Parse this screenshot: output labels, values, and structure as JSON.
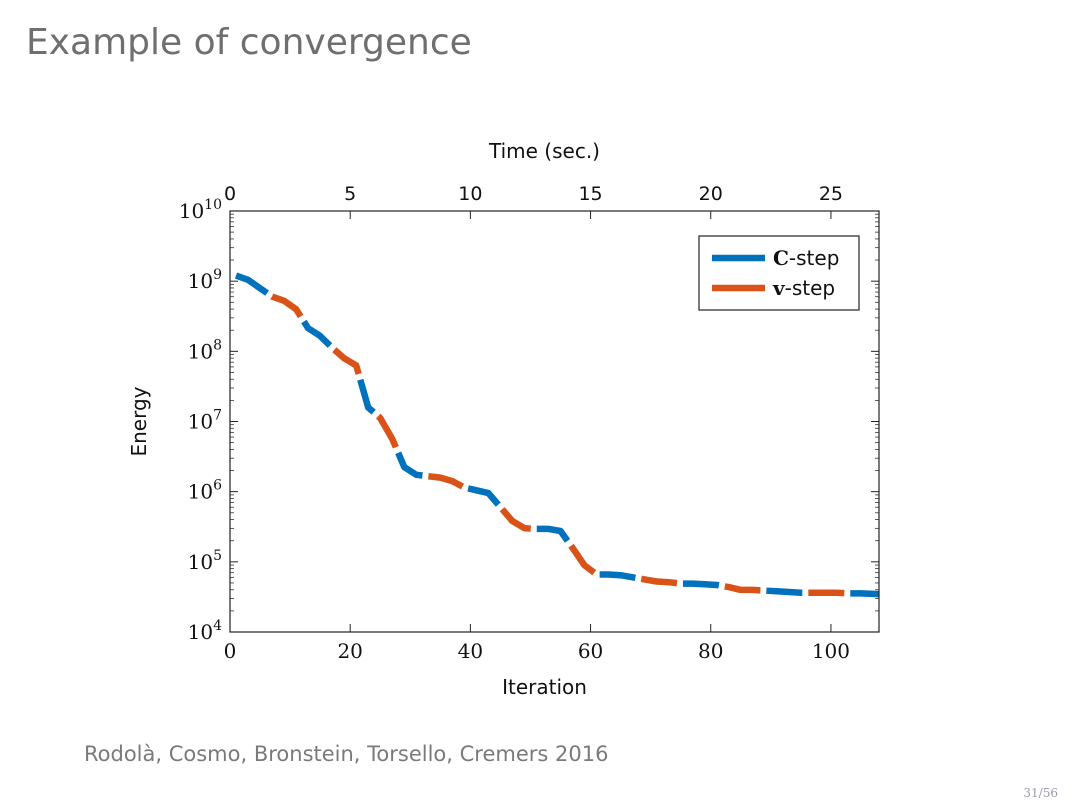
{
  "slide": {
    "title": "Example of convergence",
    "citation": "Rodolà, Cosmo, Bronstein, Torsello, Cremers 2016",
    "page_number": "31/56"
  },
  "colors": {
    "c_step": "#0072bd",
    "v_step": "#d95319"
  },
  "chart_data": {
    "type": "line",
    "title": "",
    "xlabel": "Iteration",
    "x2label": "Time (sec.)",
    "ylabel": "Energy",
    "xlim": [
      0,
      108
    ],
    "x2lim": [
      0,
      27
    ],
    "ylim_log10": [
      4,
      10
    ],
    "y_scale": "log",
    "xticks": [
      0,
      20,
      40,
      60,
      80,
      100
    ],
    "x2ticks": [
      0,
      5,
      10,
      15,
      20,
      25
    ],
    "yticks": [
      {
        "base": "10",
        "exp": "4",
        "value_log10": 4
      },
      {
        "base": "10",
        "exp": "5",
        "value_log10": 5
      },
      {
        "base": "10",
        "exp": "6",
        "value_log10": 6
      },
      {
        "base": "10",
        "exp": "7",
        "value_log10": 7
      },
      {
        "base": "10",
        "exp": "8",
        "value_log10": 8
      },
      {
        "base": "10",
        "exp": "9",
        "value_log10": 9
      },
      {
        "base": "10",
        "exp": "10",
        "value_log10": 10
      }
    ],
    "legend": {
      "position": "top-right",
      "entries": [
        {
          "bold": "C",
          "rest": "-step"
        },
        {
          "bold": "v",
          "rest": "-step"
        }
      ]
    },
    "series": [
      {
        "name": "energy",
        "x": [
          1,
          3,
          5,
          7,
          9,
          11,
          13,
          15,
          17,
          19,
          21,
          23,
          25,
          27,
          29,
          31,
          33,
          35,
          37,
          39,
          41,
          43,
          45,
          47,
          49,
          51,
          53,
          55,
          57,
          59,
          61,
          63,
          65,
          67,
          69,
          71,
          73,
          75,
          77,
          79,
          81,
          83,
          85,
          87,
          89,
          91,
          93,
          95,
          97,
          99,
          101,
          103,
          105,
          108
        ],
        "y_log10": [
          9.08,
          9.02,
          8.9,
          8.78,
          8.72,
          8.6,
          8.33,
          8.22,
          8.05,
          7.9,
          7.8,
          7.2,
          7.05,
          6.75,
          6.35,
          6.24,
          6.22,
          6.2,
          6.15,
          6.06,
          6.02,
          5.98,
          5.78,
          5.58,
          5.48,
          5.47,
          5.47,
          5.44,
          5.2,
          4.95,
          4.82,
          4.82,
          4.81,
          4.78,
          4.75,
          4.72,
          4.71,
          4.69,
          4.69,
          4.68,
          4.67,
          4.64,
          4.6,
          4.6,
          4.59,
          4.58,
          4.57,
          4.56,
          4.56,
          4.56,
          4.56,
          4.55,
          4.55,
          4.54
        ]
      }
    ]
  }
}
